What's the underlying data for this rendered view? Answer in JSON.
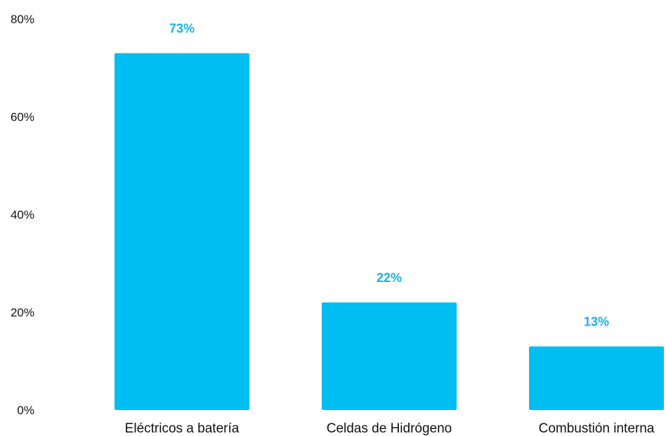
{
  "chart_data": {
    "type": "bar",
    "categories": [
      "Eléctricos a batería",
      "Celdas de Hidrógeno",
      "Combustión interna"
    ],
    "values": [
      73,
      22,
      13
    ],
    "value_labels": [
      "73%",
      "22%",
      "13%"
    ],
    "title": "",
    "xlabel": "",
    "ylabel": "",
    "ylim": [
      0,
      80
    ],
    "yticks": [
      0,
      20,
      40,
      60,
      80
    ],
    "ytick_labels": [
      "0%",
      "20%",
      "40%",
      "60%",
      "80%"
    ],
    "grid": false,
    "legend": "none",
    "colors": {
      "bar": "#00BDF2",
      "value_label": "#1AB0E8",
      "text": "#111111"
    }
  }
}
